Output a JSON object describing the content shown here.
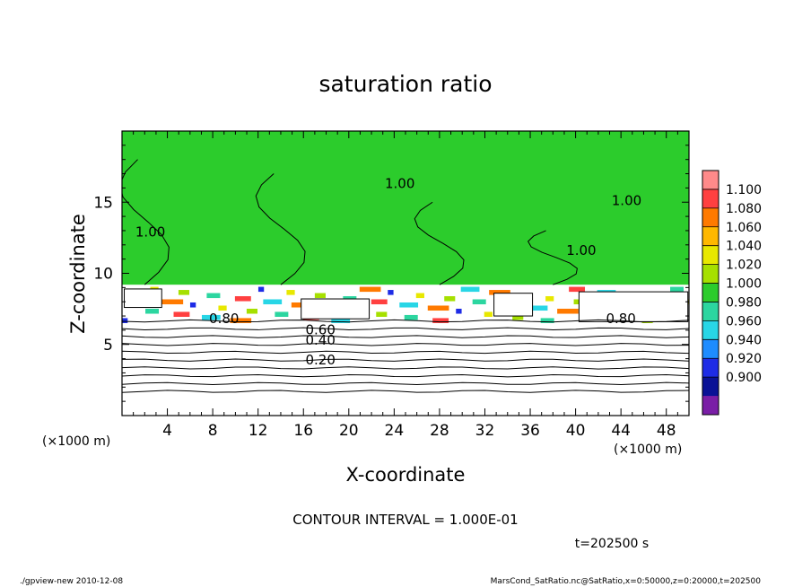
{
  "chart_data": {
    "type": "heatmap",
    "title": "saturation ratio",
    "xlabel": "X-coordinate",
    "ylabel": "Z-coordinate",
    "x_unit": "(×1000 m)",
    "y_unit": "(×1000 m)",
    "xlim": [
      0,
      50
    ],
    "ylim": [
      0,
      20
    ],
    "xticks": [
      "4",
      "8",
      "12",
      "16",
      "20",
      "24",
      "28",
      "32",
      "36",
      "40",
      "44",
      "48"
    ],
    "yticks": [
      "5",
      "10",
      "15"
    ],
    "contour_interval_text": "CONTOUR INTERVAL = 1.000E-01",
    "time_text": "t=202500 s",
    "contour_labels": [
      {
        "text": "1.00",
        "x": 2.5,
        "z": 12.6
      },
      {
        "text": "1.00",
        "x": 24.5,
        "z": 16.0
      },
      {
        "text": "1.00",
        "x": 40.5,
        "z": 11.3
      },
      {
        "text": "1.00",
        "x": 44.5,
        "z": 14.8
      },
      {
        "text": "0.80",
        "x": 9.0,
        "z": 6.5
      },
      {
        "text": "0.80",
        "x": 44.0,
        "z": 6.5
      },
      {
        "text": "0.60",
        "x": 17.5,
        "z": 5.7
      },
      {
        "text": "0.40",
        "x": 17.5,
        "z": 5.0
      },
      {
        "text": "0.20",
        "x": 17.5,
        "z": 3.6
      }
    ],
    "colorbar": {
      "levels": [
        "1.100",
        "1.080",
        "1.060",
        "1.040",
        "1.020",
        "1.000",
        "0.980",
        "0.960",
        "0.940",
        "0.920",
        "0.900"
      ],
      "colors": [
        "#ff8a8a",
        "#ff4040",
        "#ff7a00",
        "#ffb800",
        "#e8e800",
        "#a6e000",
        "#2ccc2c",
        "#2cd6a0",
        "#28d6e6",
        "#1e8cff",
        "#1e2ce6",
        "#0a1296",
        "#7a1ea6"
      ]
    }
  },
  "footer": {
    "left": "./gpview-new  2010-12-08",
    "right": "MarsCond_SatRatio.nc@SatRatio,x=0:50000,z=0:20000,t=202500"
  }
}
